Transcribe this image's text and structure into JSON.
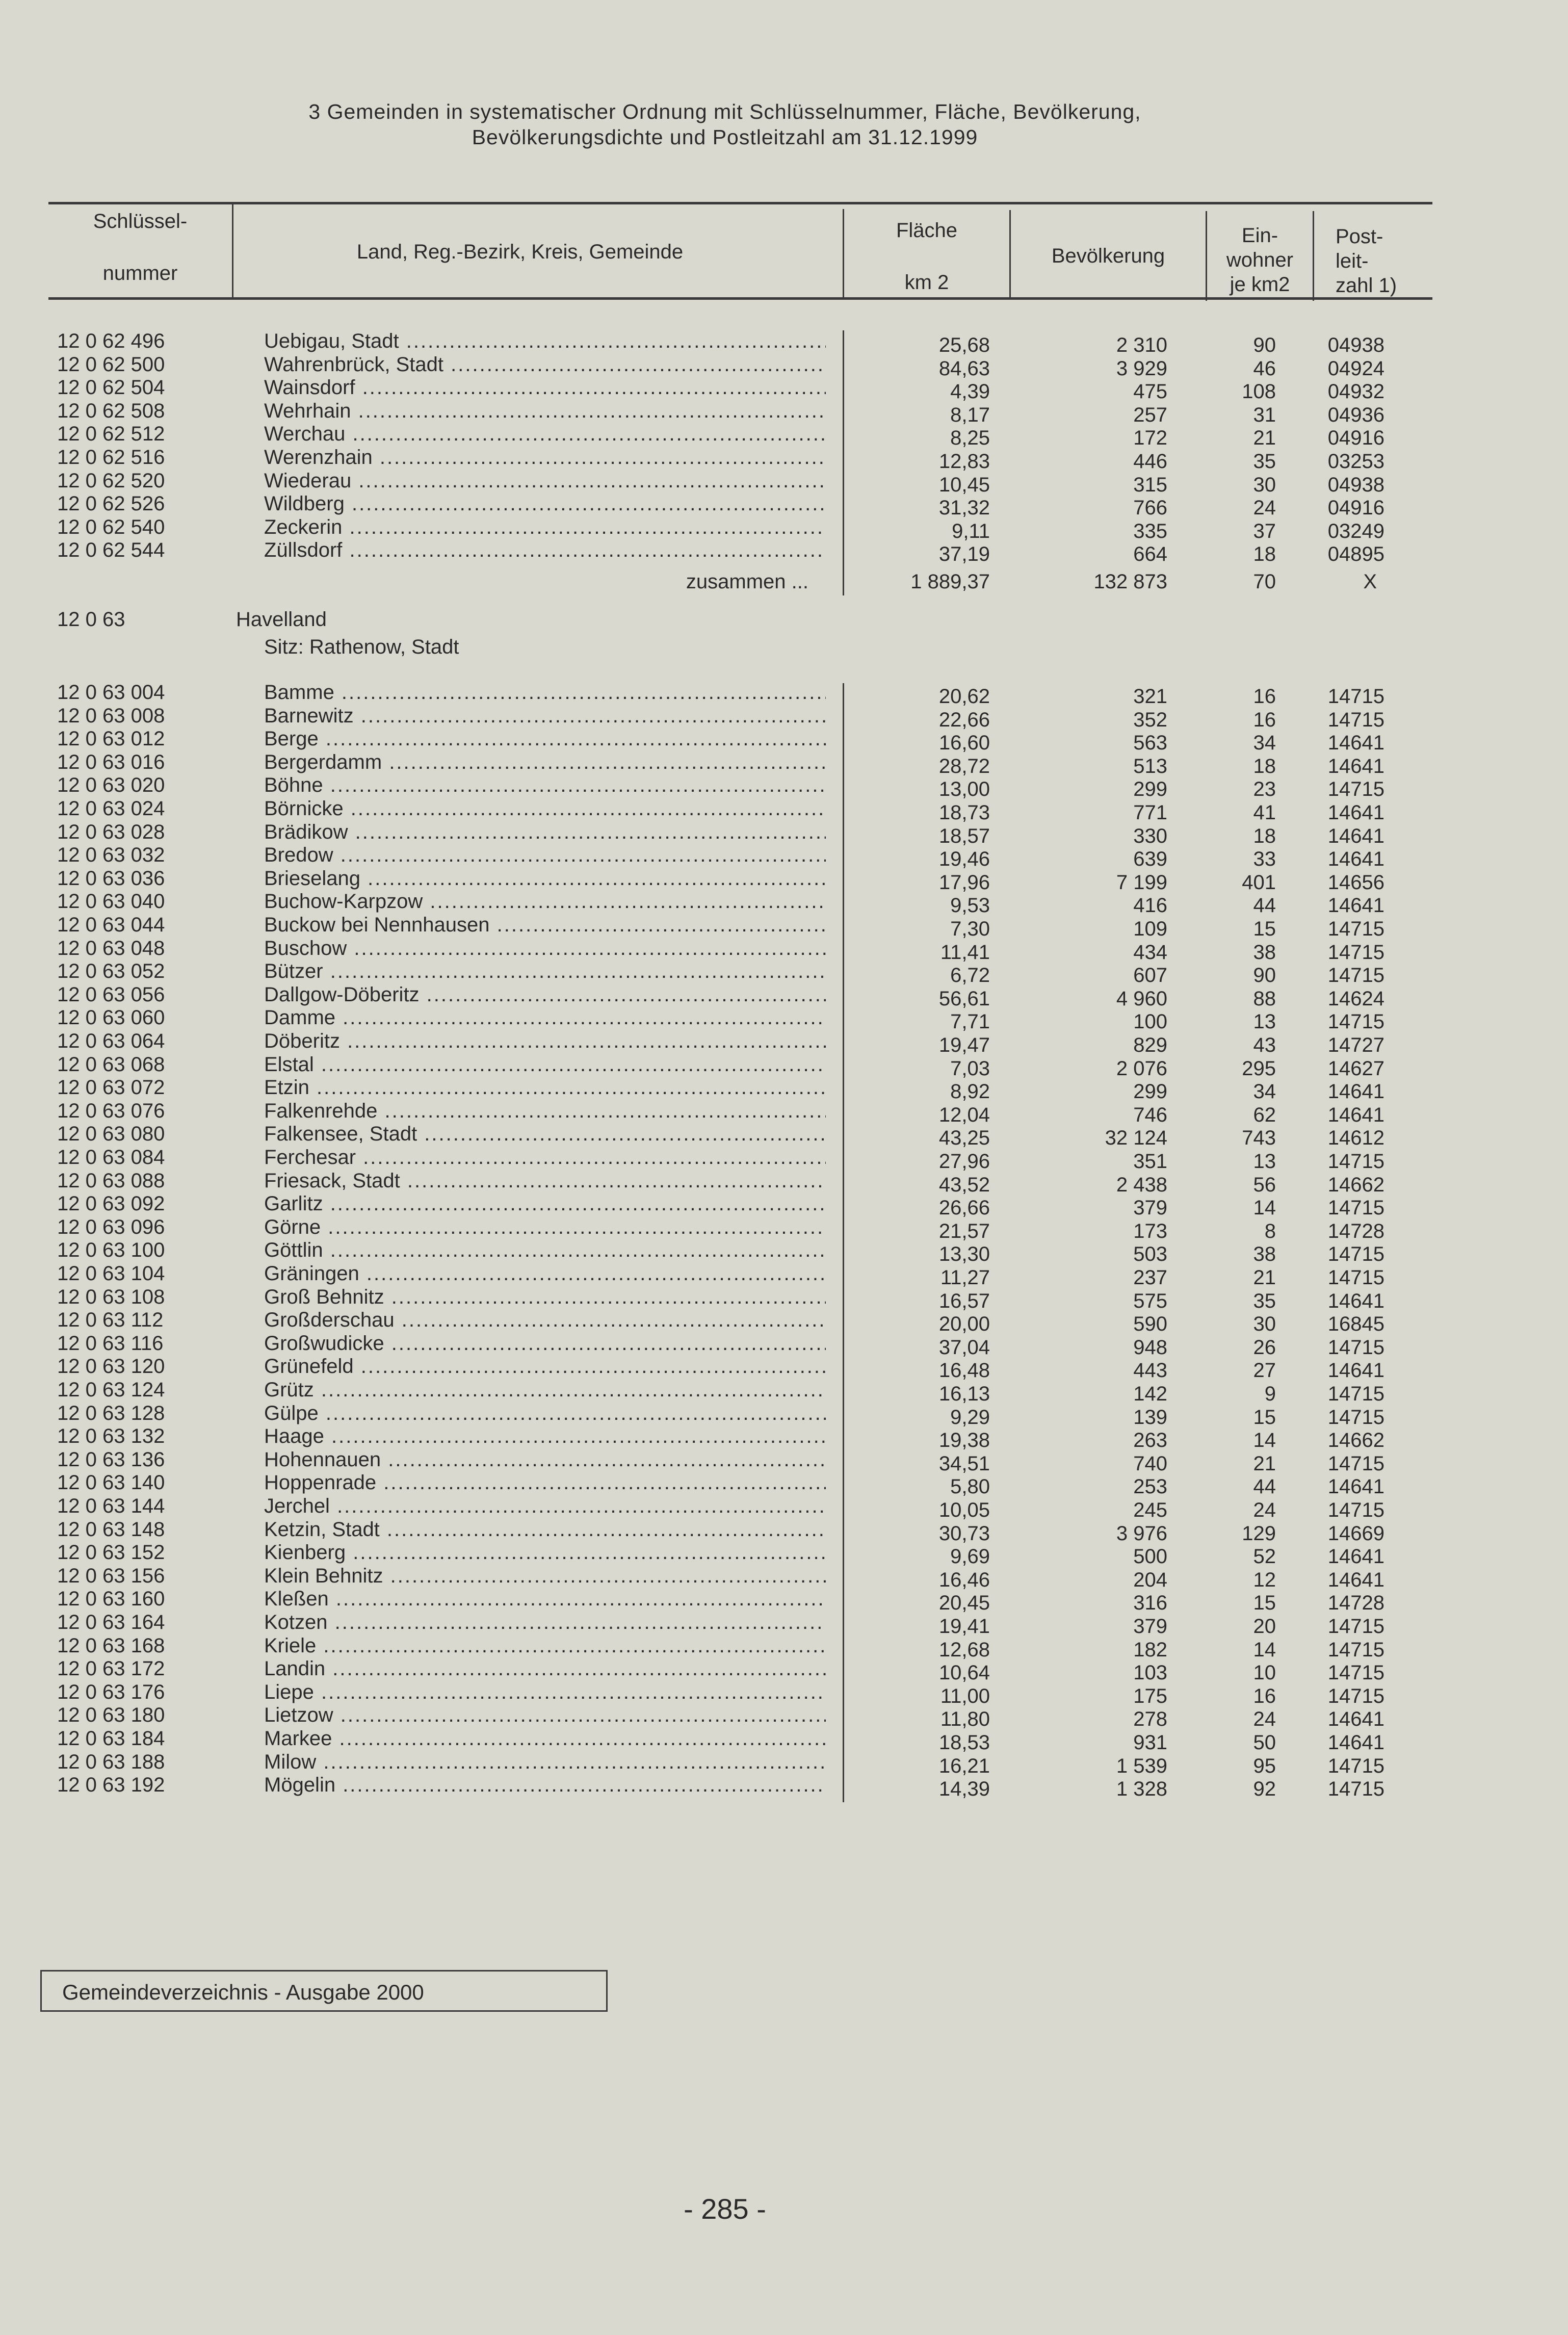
{
  "title": {
    "line1": "3 Gemeinden in systematischer Ordnung mit Schlüsselnummer, Fläche, Bevölkerung,",
    "line2": "Bevölkerungsdichte und Postleitzahl am 31.12.1999"
  },
  "header": {
    "key_line1": "Schlüssel-",
    "key_line2": "nummer",
    "name": "Land, Reg.-Bezirk, Kreis, Gemeinde",
    "area_line1": "Fläche",
    "area_line2": "km 2",
    "population": "Bevölkerung",
    "density_line1": "Ein-",
    "density_line2": "wohner",
    "density_line3": "je km2",
    "plz_line1": "Post-",
    "plz_line2": "leit-",
    "plz_line3": "zahl 1)"
  },
  "section1": {
    "rows": [
      [
        "12 0 62 496",
        "Uebigau, Stadt",
        "25,68",
        "2 310",
        "90",
        "04938"
      ],
      [
        "12 0 62 500",
        "Wahrenbrück, Stadt",
        "84,63",
        "3 929",
        "46",
        "04924"
      ],
      [
        "12 0 62 504",
        "Wainsdorf",
        "4,39",
        "475",
        "108",
        "04932"
      ],
      [
        "12 0 62 508",
        "Wehrhain",
        "8,17",
        "257",
        "31",
        "04936"
      ],
      [
        "12 0 62 512",
        "Werchau",
        "8,25",
        "172",
        "21",
        "04916"
      ],
      [
        "12 0 62 516",
        "Werenzhain",
        "12,83",
        "446",
        "35",
        "03253"
      ],
      [
        "12 0 62 520",
        "Wiederau",
        "10,45",
        "315",
        "30",
        "04938"
      ],
      [
        "12 0 62 526",
        "Wildberg",
        "31,32",
        "766",
        "24",
        "04916"
      ],
      [
        "12 0 62 540",
        "Zeckerin",
        "9,11",
        "335",
        "37",
        "03249"
      ],
      [
        "12 0 62 544",
        "Züllsdorf",
        "37,19",
        "664",
        "18",
        "04895"
      ]
    ],
    "total": {
      "label": "zusammen ...",
      "area": "1 889,37",
      "population": "132 873",
      "density": "70",
      "plz": "X"
    }
  },
  "section2": {
    "key": "12 0 63",
    "name": "Havelland",
    "seat": "Sitz: Rathenow, Stadt",
    "rows": [
      [
        "12 0 63 004",
        "Bamme",
        "20,62",
        "321",
        "16",
        "14715"
      ],
      [
        "12 0 63 008",
        "Barnewitz",
        "22,66",
        "352",
        "16",
        "14715"
      ],
      [
        "12 0 63 012",
        "Berge",
        "16,60",
        "563",
        "34",
        "14641"
      ],
      [
        "12 0 63 016",
        "Bergerdamm",
        "28,72",
        "513",
        "18",
        "14641"
      ],
      [
        "12 0 63 020",
        "Böhne",
        "13,00",
        "299",
        "23",
        "14715"
      ],
      [
        "12 0 63 024",
        "Börnicke",
        "18,73",
        "771",
        "41",
        "14641"
      ],
      [
        "12 0 63 028",
        "Brädikow",
        "18,57",
        "330",
        "18",
        "14641"
      ],
      [
        "12 0 63 032",
        "Bredow",
        "19,46",
        "639",
        "33",
        "14641"
      ],
      [
        "12 0 63 036",
        "Brieselang",
        "17,96",
        "7 199",
        "401",
        "14656"
      ],
      [
        "12 0 63 040",
        "Buchow-Karpzow",
        "9,53",
        "416",
        "44",
        "14641"
      ],
      [
        "12 0 63 044",
        "Buckow bei Nennhausen",
        "7,30",
        "109",
        "15",
        "14715"
      ],
      [
        "12 0 63 048",
        "Buschow",
        "11,41",
        "434",
        "38",
        "14715"
      ],
      [
        "12 0 63 052",
        "Bützer",
        "6,72",
        "607",
        "90",
        "14715"
      ],
      [
        "12 0 63 056",
        "Dallgow-Döberitz",
        "56,61",
        "4 960",
        "88",
        "14624"
      ],
      [
        "12 0 63 060",
        "Damme",
        "7,71",
        "100",
        "13",
        "14715"
      ],
      [
        "12 0 63 064",
        "Döberitz",
        "19,47",
        "829",
        "43",
        "14727"
      ],
      [
        "12 0 63 068",
        "Elstal",
        "7,03",
        "2 076",
        "295",
        "14627"
      ],
      [
        "12 0 63 072",
        "Etzin",
        "8,92",
        "299",
        "34",
        "14641"
      ],
      [
        "12 0 63 076",
        "Falkenrehde",
        "12,04",
        "746",
        "62",
        "14641"
      ],
      [
        "12 0 63 080",
        "Falkensee, Stadt",
        "43,25",
        "32 124",
        "743",
        "14612"
      ],
      [
        "12 0 63 084",
        "Ferchesar",
        "27,96",
        "351",
        "13",
        "14715"
      ],
      [
        "12 0 63 088",
        "Friesack, Stadt",
        "43,52",
        "2 438",
        "56",
        "14662"
      ],
      [
        "12 0 63 092",
        "Garlitz",
        "26,66",
        "379",
        "14",
        "14715"
      ],
      [
        "12 0 63 096",
        "Görne",
        "21,57",
        "173",
        "8",
        "14728"
      ],
      [
        "12 0 63 100",
        "Göttlin",
        "13,30",
        "503",
        "38",
        "14715"
      ],
      [
        "12 0 63 104",
        "Gräningen",
        "11,27",
        "237",
        "21",
        "14715"
      ],
      [
        "12 0 63 108",
        "Groß Behnitz",
        "16,57",
        "575",
        "35",
        "14641"
      ],
      [
        "12 0 63 112",
        "Großderschau",
        "20,00",
        "590",
        "30",
        "16845"
      ],
      [
        "12 0 63 116",
        "Großwudicke",
        "37,04",
        "948",
        "26",
        "14715"
      ],
      [
        "12 0 63 120",
        "Grünefeld",
        "16,48",
        "443",
        "27",
        "14641"
      ],
      [
        "12 0 63 124",
        "Grütz",
        "16,13",
        "142",
        "9",
        "14715"
      ],
      [
        "12 0 63 128",
        "Gülpe",
        "9,29",
        "139",
        "15",
        "14715"
      ],
      [
        "12 0 63 132",
        "Haage",
        "19,38",
        "263",
        "14",
        "14662"
      ],
      [
        "12 0 63 136",
        "Hohennauen",
        "34,51",
        "740",
        "21",
        "14715"
      ],
      [
        "12 0 63 140",
        "Hoppenrade",
        "5,80",
        "253",
        "44",
        "14641"
      ],
      [
        "12 0 63 144",
        "Jerchel",
        "10,05",
        "245",
        "24",
        "14715"
      ],
      [
        "12 0 63 148",
        "Ketzin, Stadt",
        "30,73",
        "3 976",
        "129",
        "14669"
      ],
      [
        "12 0 63 152",
        "Kienberg",
        "9,69",
        "500",
        "52",
        "14641"
      ],
      [
        "12 0 63 156",
        "Klein Behnitz",
        "16,46",
        "204",
        "12",
        "14641"
      ],
      [
        "12 0 63 160",
        "Kleßen",
        "20,45",
        "316",
        "15",
        "14728"
      ],
      [
        "12 0 63 164",
        "Kotzen",
        "19,41",
        "379",
        "20",
        "14715"
      ],
      [
        "12 0 63 168",
        "Kriele",
        "12,68",
        "182",
        "14",
        "14715"
      ],
      [
        "12 0 63 172",
        "Landin",
        "10,64",
        "103",
        "10",
        "14715"
      ],
      [
        "12 0 63 176",
        "Liepe",
        "11,00",
        "175",
        "16",
        "14715"
      ],
      [
        "12 0 63 180",
        "Lietzow",
        "11,80",
        "278",
        "24",
        "14641"
      ],
      [
        "12 0 63 184",
        "Markee",
        "18,53",
        "931",
        "50",
        "14641"
      ],
      [
        "12 0 63 188",
        "Milow",
        "16,21",
        "1 539",
        "95",
        "14715"
      ],
      [
        "12 0 63 192",
        "Mögelin",
        "14,39",
        "1 328",
        "92",
        "14715"
      ]
    ]
  },
  "footer": {
    "publication": "Gemeindeverzeichnis  -  Ausgabe 2000",
    "page_number": "- 285 -"
  }
}
